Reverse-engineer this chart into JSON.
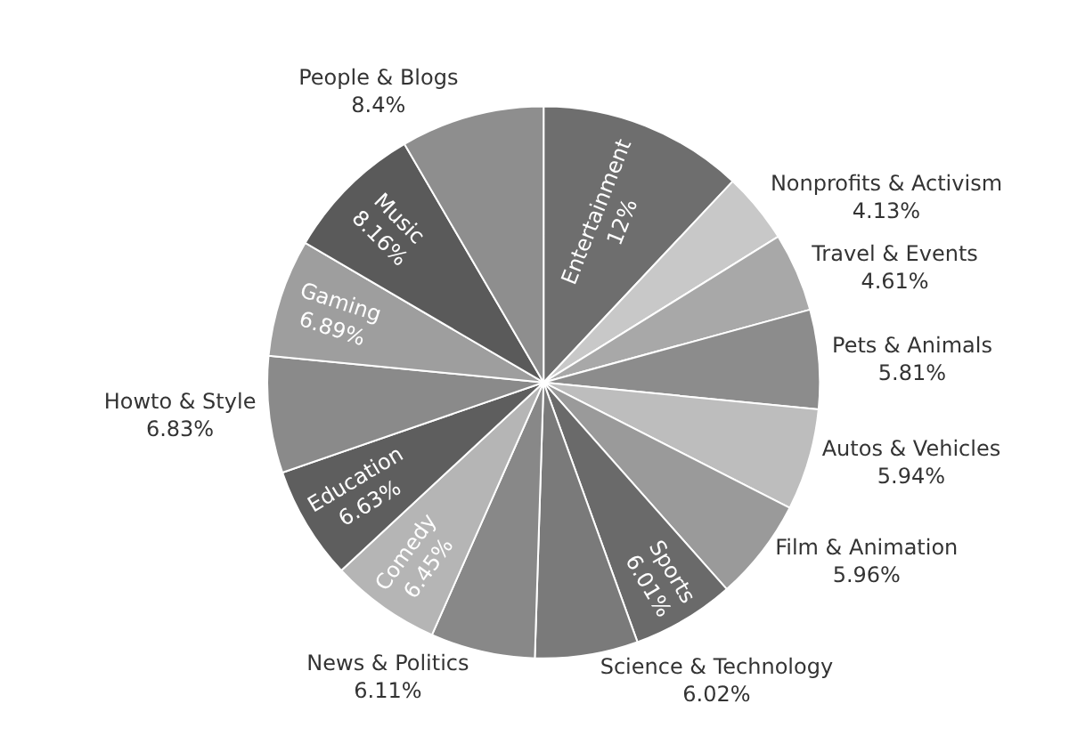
{
  "chart_data": {
    "type": "pie",
    "categories": [
      "Entertainment",
      "Nonprofits & Activism",
      "Travel & Events",
      "Pets & Animals",
      "Autos & Vehicles",
      "Film & Animation",
      "Sports",
      "Science & Technology",
      "News & Politics",
      "Comedy",
      "Education",
      "Howto & Style",
      "Gaming",
      "Music",
      "People & Blogs"
    ],
    "values": [
      12,
      4.13,
      4.61,
      5.81,
      5.94,
      5.96,
      6.01,
      6.02,
      6.11,
      6.45,
      6.63,
      6.83,
      6.89,
      8.16,
      8.4
    ],
    "value_labels": [
      "12%",
      "4.13%",
      "4.61%",
      "5.81%",
      "5.94%",
      "5.96%",
      "6.01%",
      "6.02%",
      "6.11%",
      "6.45%",
      "6.63%",
      "6.83%",
      "6.89%",
      "8.16%",
      "8.4%"
    ],
    "colors": [
      "#6e6e6e",
      "#c8c8c8",
      "#a8a8a8",
      "#8c8c8c",
      "#bdbdbd",
      "#9a9a9a",
      "#6a6a6a",
      "#7a7a7a",
      "#888888",
      "#b5b5b5",
      "#5e5e5e",
      "#8a8a8a",
      "#9e9e9e",
      "#5a5a5a",
      "#8e8e8e"
    ],
    "legend": false
  }
}
